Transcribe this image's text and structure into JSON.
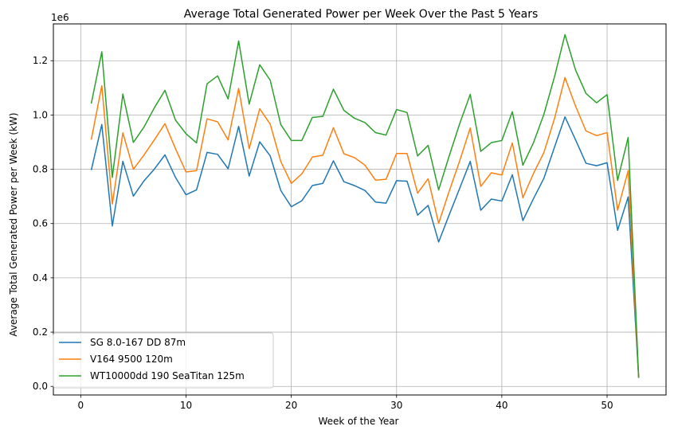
{
  "chart_data": {
    "type": "line",
    "title": "Average Total Generated Power per Week Over the Past 5 Years",
    "xlabel": "Week of the Year",
    "ylabel": "Average Total Generated Power per Week (kW)",
    "y_offset_label": "1e6",
    "xlim": [
      -2.6,
      55.6
    ],
    "ylim": [
      -0.0316,
      1.3356
    ],
    "x_ticks": [
      0,
      10,
      20,
      30,
      40,
      50
    ],
    "x_tick_labels": [
      "0",
      "10",
      "20",
      "30",
      "40",
      "50"
    ],
    "y_ticks": [
      0.0,
      0.2,
      0.4,
      0.6,
      0.8,
      1.0,
      1.2
    ],
    "y_tick_labels": [
      "0.0",
      "0.2",
      "0.4",
      "0.6",
      "0.8",
      "1.0",
      "1.2"
    ],
    "grid": true,
    "legend_position": "lower-left",
    "x": [
      1,
      2,
      3,
      4,
      5,
      6,
      7,
      8,
      9,
      10,
      11,
      12,
      13,
      14,
      15,
      16,
      17,
      18,
      19,
      20,
      21,
      22,
      23,
      24,
      25,
      26,
      27,
      28,
      29,
      30,
      31,
      32,
      33,
      34,
      35,
      36,
      37,
      38,
      39,
      40,
      41,
      42,
      43,
      44,
      45,
      46,
      47,
      48,
      49,
      50,
      51,
      52,
      53
    ],
    "series": [
      {
        "name": "SG 8.0-167 DD 87m",
        "color": "#1f77b4",
        "values": [
          0.797,
          0.965,
          0.591,
          0.829,
          0.701,
          0.757,
          0.801,
          0.853,
          0.77,
          0.706,
          0.724,
          0.862,
          0.855,
          0.802,
          0.958,
          0.775,
          0.901,
          0.849,
          0.722,
          0.662,
          0.684,
          0.74,
          0.748,
          0.831,
          0.754,
          0.74,
          0.722,
          0.679,
          0.675,
          0.758,
          0.756,
          0.631,
          0.667,
          0.532,
          0.632,
          0.73,
          0.829,
          0.649,
          0.69,
          0.683,
          0.78,
          0.611,
          0.691,
          0.767,
          0.881,
          0.993,
          0.909,
          0.822,
          0.813,
          0.824,
          0.575,
          0.698,
          0.031
        ]
      },
      {
        "name": "V164 9500 120m",
        "color": "#ff7f0e",
        "values": [
          0.909,
          1.108,
          0.672,
          0.934,
          0.8,
          0.852,
          0.909,
          0.968,
          0.876,
          0.79,
          0.795,
          0.986,
          0.975,
          0.908,
          1.098,
          0.876,
          1.023,
          0.966,
          0.829,
          0.748,
          0.783,
          0.845,
          0.852,
          0.953,
          0.857,
          0.843,
          0.815,
          0.76,
          0.763,
          0.858,
          0.858,
          0.712,
          0.765,
          0.601,
          0.719,
          0.831,
          0.952,
          0.737,
          0.787,
          0.779,
          0.897,
          0.695,
          0.784,
          0.862,
          0.986,
          1.138,
          1.033,
          0.941,
          0.924,
          0.935,
          0.649,
          0.795,
          0.032
        ]
      },
      {
        "name": "WT10000dd 190 SeaTitan 125m",
        "color": "#2ca02c",
        "values": [
          1.042,
          1.233,
          0.77,
          1.077,
          0.899,
          0.955,
          1.027,
          1.091,
          0.981,
          0.931,
          0.897,
          1.115,
          1.144,
          1.059,
          1.273,
          1.04,
          1.185,
          1.128,
          0.965,
          0.906,
          0.906,
          0.991,
          0.995,
          1.095,
          1.017,
          0.988,
          0.972,
          0.935,
          0.926,
          1.02,
          1.009,
          0.849,
          0.888,
          0.724,
          0.849,
          0.968,
          1.076,
          0.866,
          0.898,
          0.906,
          1.012,
          0.815,
          0.897,
          1.003,
          1.14,
          1.296,
          1.166,
          1.079,
          1.045,
          1.075,
          0.759,
          0.917,
          0.033
        ]
      }
    ]
  }
}
